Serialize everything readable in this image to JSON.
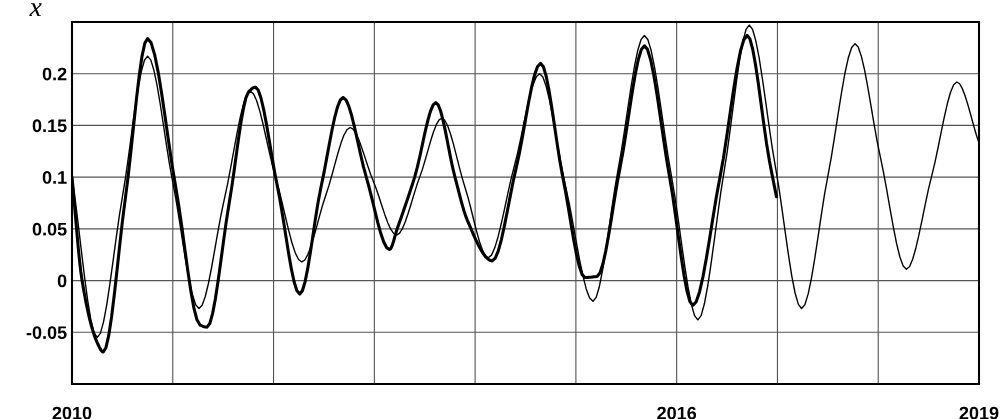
{
  "chart_data": {
    "type": "line",
    "ylabel": "x",
    "xlim": [
      2010,
      2019
    ],
    "ylim": [
      -0.1,
      0.25
    ],
    "xticks": [
      2010,
      {
        "value": 2011,
        "label": null
      },
      {
        "value": 2012,
        "label": null
      },
      {
        "value": 2013,
        "label": null
      },
      {
        "value": 2014,
        "label": null
      },
      {
        "value": 2015,
        "label": null
      },
      2016,
      {
        "value": 2017,
        "label": null
      },
      {
        "value": 2018,
        "label": null
      },
      2019
    ],
    "yticks": [
      -0.05,
      0,
      0.05,
      0.1,
      0.15,
      0.2
    ],
    "grid": true,
    "legend": false,
    "marker": "none",
    "line_style": "solid",
    "series": [
      {
        "color": "#000000",
        "x": [
          2010.0,
          2010.25,
          2010.5,
          2010.75,
          2011.0,
          2011.26,
          2011.51,
          2011.77,
          2012.02,
          2012.28,
          2012.52,
          2012.76,
          2012.99,
          2013.22,
          2013.45,
          2013.67,
          2013.9,
          2014.13,
          2014.39,
          2014.64,
          2014.9,
          2015.17,
          2015.42,
          2015.68,
          2015.95,
          2016.21,
          2016.47,
          2016.72,
          2016.98,
          2017.24,
          2017.5,
          2017.77,
          2018.02,
          2018.28,
          2018.53,
          2018.78,
          2019.0
        ],
        "values": [
          0.1,
          -0.055,
          0.081,
          0.217,
          0.095,
          -0.027,
          0.078,
          0.183,
          0.1,
          0.018,
          0.083,
          0.148,
          0.096,
          0.044,
          0.1,
          0.157,
          0.09,
          0.022,
          0.111,
          0.2,
          0.09,
          -0.02,
          0.108,
          0.237,
          0.1,
          -0.038,
          0.105,
          0.247,
          0.11,
          -0.027,
          0.101,
          0.229,
          0.12,
          0.011,
          0.101,
          0.192,
          0.133
        ]
      },
      {
        "color": "#000000",
        "x": [
          2010.0,
          2010.1,
          2010.25,
          2010.31,
          2010.53,
          2010.75,
          2011.03,
          2011.27,
          2011.34,
          2011.56,
          2011.75,
          2011.82,
          2012.04,
          2012.26,
          2012.47,
          2012.69,
          2012.92,
          2013.15,
          2013.23,
          2013.4,
          2013.61,
          2013.8,
          2013.92,
          2014.17,
          2014.41,
          2014.65,
          2014.87,
          2015.09,
          2015.21,
          2015.44,
          2015.68,
          2015.93,
          2016.16,
          2016.43,
          2016.7,
          2016.92,
          2016.99
        ],
        "values": [
          0.1,
          0.0,
          -0.06,
          -0.069,
          0.08,
          0.234,
          0.09,
          -0.043,
          -0.045,
          0.075,
          0.182,
          0.187,
          0.09,
          -0.013,
          0.09,
          0.177,
          0.1,
          0.03,
          0.051,
          0.1,
          0.172,
          0.1,
          0.059,
          0.019,
          0.11,
          0.21,
          0.1,
          0.003,
          0.004,
          0.11,
          0.227,
          0.1,
          -0.024,
          0.1,
          0.237,
          0.116,
          0.081
        ]
      }
    ]
  }
}
